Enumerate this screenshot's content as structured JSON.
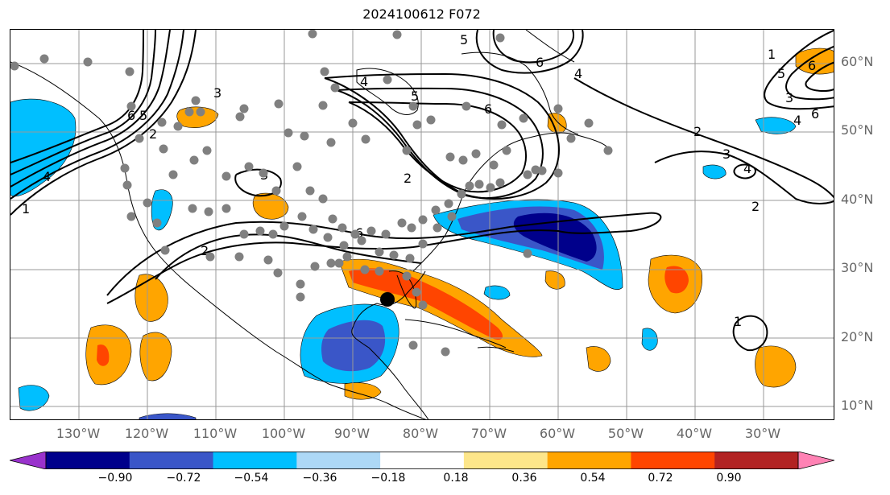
{
  "title": "2024100612 F072",
  "lat_labels": [
    "60°N",
    "50°N",
    "40°N",
    "30°N",
    "20°N",
    "10°N"
  ],
  "lon_labels": [
    "130°W",
    "120°W",
    "110°W",
    "100°W",
    "90°W",
    "80°W",
    "70°W",
    "60°W",
    "50°W",
    "40°W",
    "30°W"
  ],
  "colorbar": {
    "ticks": [
      "−0.90",
      "−0.72",
      "−0.54",
      "−0.36",
      "−0.18",
      "0.18",
      "0.36",
      "0.54",
      "0.72",
      "0.90"
    ],
    "colors": [
      "#9932cc",
      "#00008b",
      "#3a56c8",
      "#00bfff",
      "#add8f6",
      "#ffffff",
      "#fde68a",
      "#ffa500",
      "#ff4500",
      "#b22222",
      "#ff82b4"
    ]
  },
  "contour_labels": [
    "1",
    "2",
    "3",
    "4",
    "5",
    "6",
    "2",
    "3",
    "4",
    "5",
    "6",
    "6",
    "5",
    "6",
    "4",
    "5",
    "6",
    "1",
    "2",
    "3",
    "4",
    "6",
    "2",
    "3",
    "4",
    "2",
    "1"
  ],
  "colors": {
    "gridline": "#999999",
    "coast": "#000000",
    "dot": "#808080",
    "storm": "#000000"
  }
}
